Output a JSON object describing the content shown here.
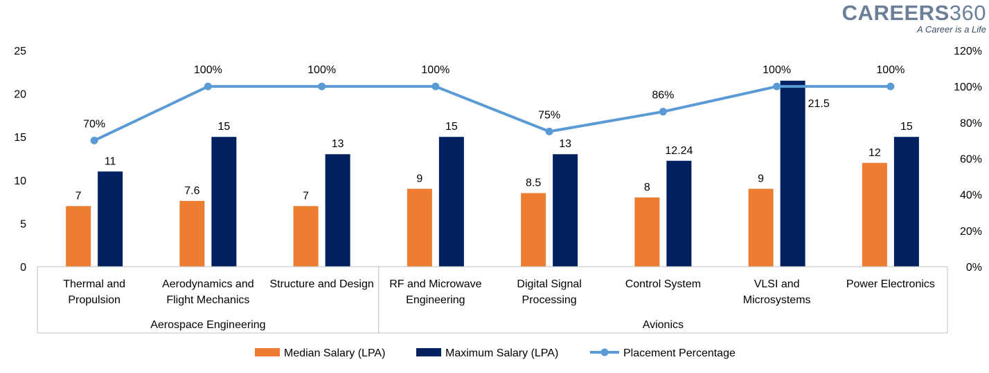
{
  "logo": {
    "brand": "CAREERS",
    "number": "360",
    "tagline": "A Career is a Life"
  },
  "chart_data": {
    "type": "bar",
    "groups": [
      {
        "label": "Aerospace Engineering",
        "categories": [
          "Thermal and Propulsion",
          "Aerodynamics and Flight Mechanics",
          "Structure and Design"
        ]
      },
      {
        "label": "Avionics",
        "categories": [
          "RF and Microwave Engineering",
          "Digital Signal Processing",
          "Control System",
          "VLSI and Microsystems",
          "Power Electronics"
        ]
      }
    ],
    "categories": [
      [
        "Thermal and",
        "Propulsion"
      ],
      [
        "Aerodynamics and",
        "Flight Mechanics"
      ],
      [
        "Structure and Design"
      ],
      [
        "RF and Microwave",
        "Engineering"
      ],
      [
        "Digital Signal",
        "Processing"
      ],
      [
        "Control System"
      ],
      [
        "VLSI and",
        "Microsystems"
      ],
      [
        "Power Electronics"
      ]
    ],
    "series": [
      {
        "name": "Median Salary (LPA)",
        "kind": "bar",
        "axis": "left",
        "color": "#ED7D31",
        "values": [
          7,
          7.6,
          7,
          9,
          8.5,
          8,
          9,
          12
        ],
        "labels": [
          "7",
          "7.6",
          "7",
          "9",
          "8.5",
          "8",
          "9",
          "12"
        ]
      },
      {
        "name": "Maximum Salary (LPA)",
        "kind": "bar",
        "axis": "left",
        "color": "#002060",
        "values": [
          11,
          15,
          13,
          15,
          13,
          12.24,
          21.5,
          15
        ],
        "labels": [
          "11",
          "15",
          "13",
          "15",
          "13",
          "12.24",
          "21.5",
          "15"
        ]
      },
      {
        "name": "Placement Percentage",
        "kind": "line",
        "axis": "right",
        "color": "#5B9BD5",
        "values": [
          70,
          100,
          100,
          100,
          75,
          86,
          100,
          100
        ],
        "labels": [
          "70%",
          "100%",
          "100%",
          "100%",
          "75%",
          "86%",
          "100%",
          "100%"
        ]
      }
    ],
    "left_axis": {
      "min": 0,
      "max": 25,
      "ticks": [
        "0",
        "5",
        "10",
        "15",
        "20",
        "25"
      ]
    },
    "right_axis": {
      "min": 0,
      "max": 120,
      "ticks": [
        "0%",
        "20%",
        "40%",
        "60%",
        "80%",
        "100%",
        "120%"
      ]
    },
    "grid": false,
    "legend_position": "bottom"
  }
}
